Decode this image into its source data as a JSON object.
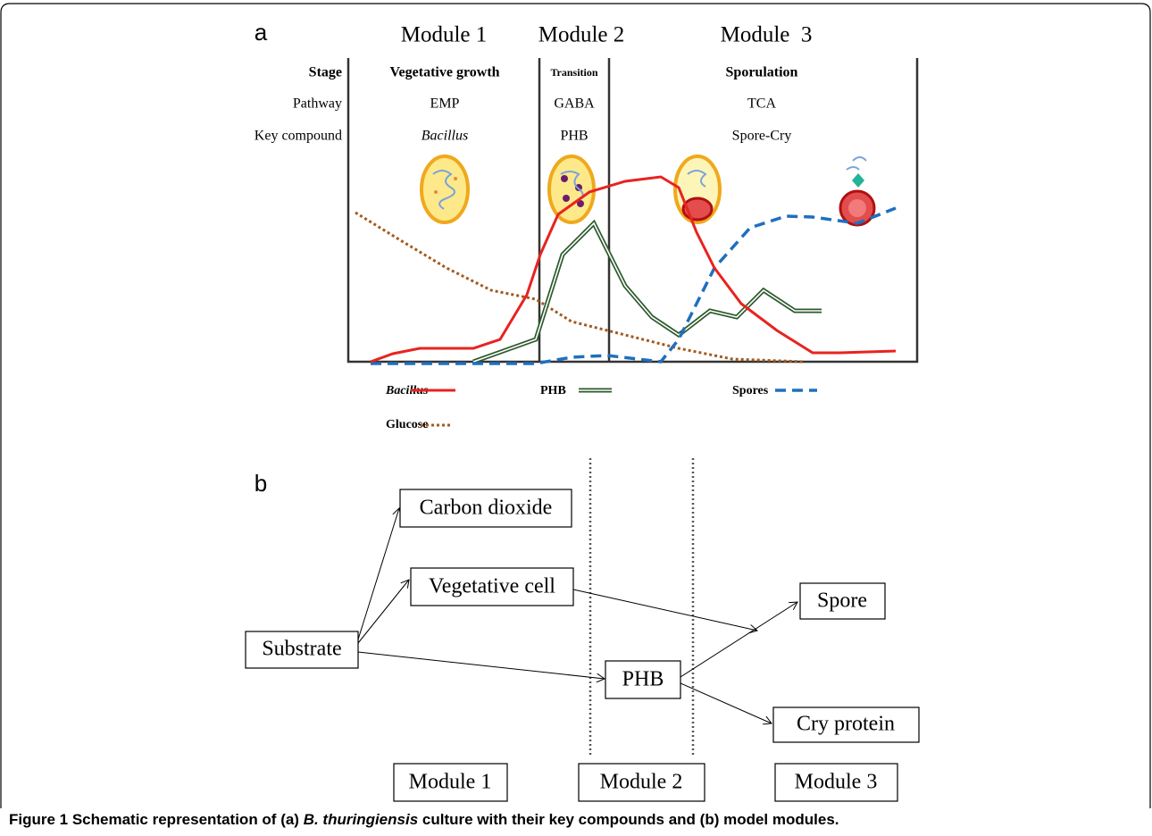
{
  "panel_a": {
    "label": "a",
    "modules": [
      "Module 1",
      "Module 2",
      "Module  3"
    ],
    "row_labels": [
      "Stage",
      "Pathway",
      "Key compound"
    ],
    "columns": [
      {
        "stage": "Vegetative growth",
        "pathway": "EMP",
        "compound": "Bacillus"
      },
      {
        "stage": "Transition",
        "pathway": "GABA",
        "compound": "PHB"
      },
      {
        "stage": "Sporulation",
        "pathway": "TCA",
        "compound": "Spore-Cry"
      }
    ],
    "legend": [
      "Bacillus",
      "PHB",
      "Spores",
      "Glucose"
    ]
  },
  "panel_b": {
    "label": "b",
    "nodes": [
      "Carbon dioxide",
      "Vegetative cell",
      "Substrate",
      "PHB",
      "Spore",
      "Cry protein"
    ],
    "modules": [
      "Module 1",
      "Module 2",
      "Module 3"
    ]
  },
  "caption": {
    "label": "Figure 1",
    "text_before": " Schematic representation of (a) ",
    "species": "B. thuringiensis",
    "text_after": " culture with their key compounds and (b) model modules."
  }
}
